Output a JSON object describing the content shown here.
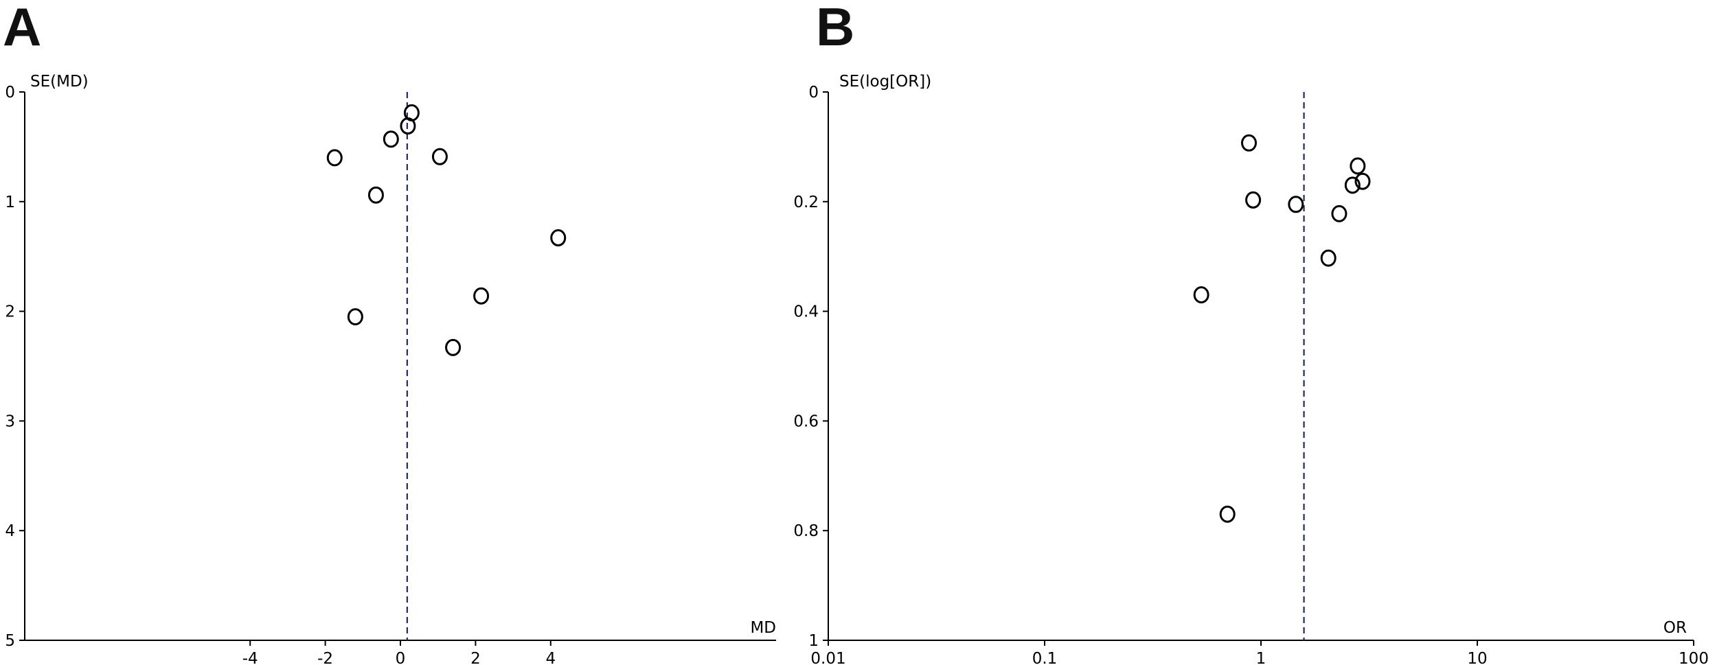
{
  "panels": [
    {
      "letter": "A"
    },
    {
      "letter": "B"
    }
  ],
  "colors": {
    "points": "#000000",
    "reference_line": "#1f2a6b",
    "axes": "#000000"
  },
  "chart_data": [
    {
      "type": "scatter",
      "subtype": "funnel-plot",
      "xlabel": "MD",
      "ylabel": "SE(MD)",
      "x_scale": "linear",
      "xlim": [
        -10,
        10
      ],
      "ylim": [
        0,
        5
      ],
      "y_inverted": true,
      "x_ticks": [
        "-4",
        "-2",
        "0",
        "2",
        "4"
      ],
      "y_ticks": [
        "0",
        "1",
        "2",
        "3",
        "4",
        "5"
      ],
      "reference_x": 0.18,
      "grid": false,
      "legend": "none",
      "points": [
        {
          "x": 0.3,
          "y": 0.19
        },
        {
          "x": 0.2,
          "y": 0.31
        },
        {
          "x": -0.25,
          "y": 0.43
        },
        {
          "x": -1.75,
          "y": 0.6
        },
        {
          "x": 1.05,
          "y": 0.59
        },
        {
          "x": -0.65,
          "y": 0.94
        },
        {
          "x": 4.2,
          "y": 1.33
        },
        {
          "x": 2.15,
          "y": 1.86
        },
        {
          "x": -1.2,
          "y": 2.05
        },
        {
          "x": 1.4,
          "y": 2.33
        }
      ]
    },
    {
      "type": "scatter",
      "subtype": "funnel-plot",
      "xlabel": "OR",
      "ylabel": "SE(log[OR])",
      "x_scale": "log",
      "xlim": [
        0.01,
        100
      ],
      "ylim": [
        0,
        1
      ],
      "y_inverted": true,
      "x_ticks": [
        "0.01",
        "0.1",
        "1",
        "10",
        "100"
      ],
      "y_ticks": [
        "0",
        "0.2",
        "0.4",
        "0.6",
        "0.8",
        "1"
      ],
      "reference_x": 1.58,
      "grid": false,
      "legend": "none",
      "points": [
        {
          "x": 0.88,
          "y": 0.093
        },
        {
          "x": 2.8,
          "y": 0.135
        },
        {
          "x": 2.95,
          "y": 0.163
        },
        {
          "x": 2.65,
          "y": 0.17
        },
        {
          "x": 0.92,
          "y": 0.197
        },
        {
          "x": 1.45,
          "y": 0.205
        },
        {
          "x": 2.3,
          "y": 0.222
        },
        {
          "x": 2.05,
          "y": 0.303
        },
        {
          "x": 0.53,
          "y": 0.37
        },
        {
          "x": 0.7,
          "y": 0.77
        }
      ]
    }
  ]
}
